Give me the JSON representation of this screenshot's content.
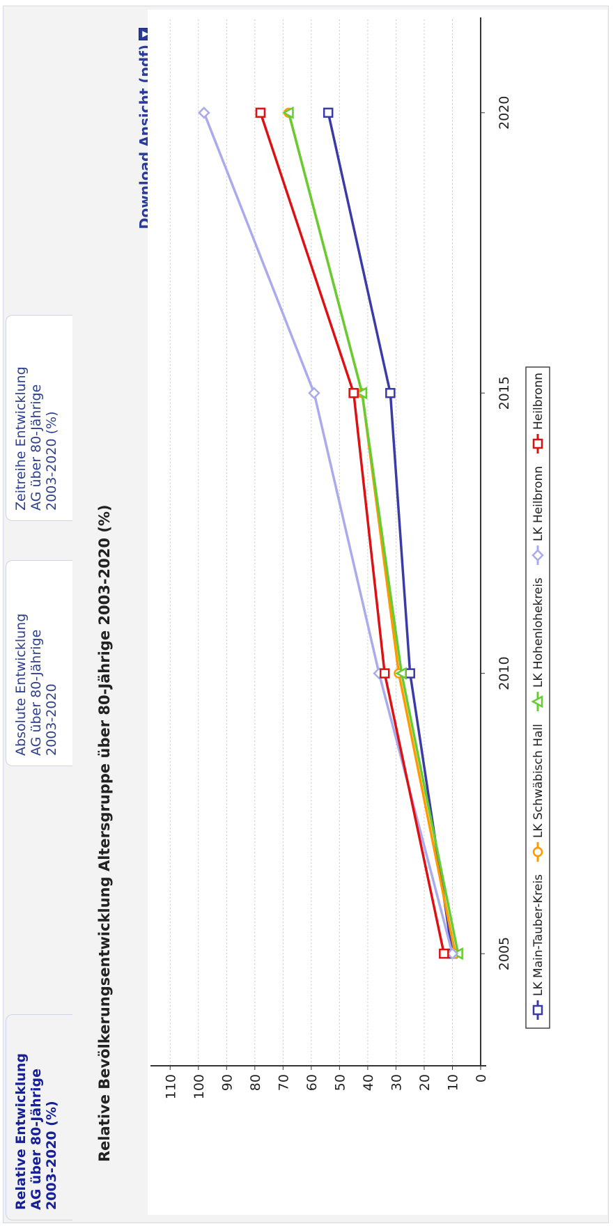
{
  "tabs": [
    {
      "lines": [
        "Relative Entwicklung",
        "AG über 80-Jährige",
        "2003-2020 (%)"
      ],
      "active": true
    },
    {
      "lines": [
        "Absolute Entwicklung",
        "AG über 80-Jährige",
        "2003-2020"
      ],
      "active": false
    },
    {
      "lines": [
        "Zeitreihe Entwicklung",
        "AG über 80-Jährige",
        "2003-2020 (%)"
      ],
      "active": false
    }
  ],
  "download_label": "Download Ansicht (pdf)",
  "chart_data": {
    "type": "line",
    "title": "Relative Bevölkerungsentwicklung Altersgruppe über 80-Jährige 2003-2020 (%)",
    "x": [
      2005,
      2010,
      2015,
      2020
    ],
    "xticks": [
      "2005",
      "2010",
      "2015",
      "2020"
    ],
    "ylim": [
      0,
      115
    ],
    "yticks": [
      0,
      10,
      20,
      30,
      40,
      50,
      60,
      70,
      80,
      90,
      100,
      110
    ],
    "grid": true,
    "legend_position": "bottom",
    "series": [
      {
        "name": "LK Main-Tauber-Kreis",
        "values": [
          10,
          25,
          32,
          54
        ],
        "color": "#3b3ba8",
        "marker": "square"
      },
      {
        "name": "LK Schwäbisch Hall",
        "values": [
          9,
          29,
          42,
          68
        ],
        "color": "#ff9900",
        "marker": "circle"
      },
      {
        "name": "LK Hohenlohekreis",
        "values": [
          8,
          28,
          42,
          68
        ],
        "color": "#66cc33",
        "marker": "triangle"
      },
      {
        "name": "LK Heilbronn",
        "values": [
          10,
          36,
          59,
          98
        ],
        "color": "#aaaaee",
        "marker": "diamond"
      },
      {
        "name": "Heilbronn",
        "values": [
          13,
          34,
          45,
          78
        ],
        "color": "#dd1111",
        "marker": "square"
      }
    ]
  }
}
